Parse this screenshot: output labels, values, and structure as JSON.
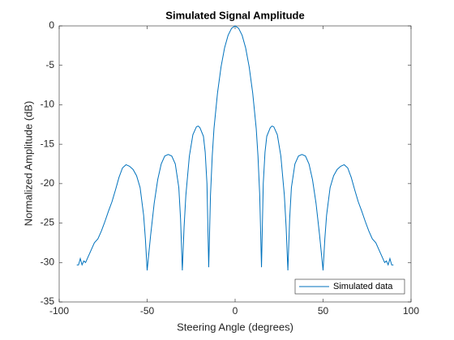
{
  "chart_data": {
    "type": "line",
    "title": "Simulated Signal Amplitude",
    "xlabel": "Steering Angle (degrees)",
    "ylabel": "Normalized Amplitude (dB)",
    "x": [
      -90,
      -89,
      -88,
      -87,
      -86,
      -85,
      -84,
      -82,
      -80,
      -78,
      -76,
      -74,
      -72,
      -70,
      -68,
      -66,
      -64,
      -62,
      -60,
      -58,
      -56,
      -54,
      -52,
      -51,
      -50,
      -48,
      -46,
      -44,
      -42,
      -40,
      -38,
      -36,
      -34,
      -32,
      -31,
      -30,
      -29,
      -28,
      -26,
      -24,
      -22,
      -21,
      -20,
      -18,
      -17,
      -16,
      -15,
      -14,
      -13,
      -12,
      -10,
      -8,
      -6,
      -4,
      -2,
      0,
      2,
      4,
      6,
      8,
      10,
      12,
      13,
      14,
      15,
      16,
      17,
      18,
      20,
      21,
      22,
      24,
      26,
      28,
      29,
      30,
      31,
      32,
      34,
      36,
      38,
      40,
      42,
      44,
      46,
      48,
      50,
      51,
      52,
      54,
      56,
      58,
      60,
      62,
      64,
      66,
      68,
      70,
      72,
      74,
      76,
      78,
      80,
      82,
      84,
      85,
      86,
      87,
      88,
      89,
      90
    ],
    "series": [
      {
        "name": "Simulated data",
        "color": "#0072bd",
        "values": [
          -30.3,
          -30.3,
          -29.5,
          -30.3,
          -29.8,
          -30,
          -29.5,
          -28.5,
          -27.5,
          -27,
          -26,
          -24.8,
          -23.5,
          -22.3,
          -20.8,
          -19.2,
          -18,
          -17.6,
          -17.8,
          -18.2,
          -19,
          -20.5,
          -24,
          -27,
          -31,
          -26.5,
          -22.5,
          -19.5,
          -17.5,
          -16.5,
          -16.3,
          -16.5,
          -17.5,
          -20.5,
          -24.5,
          -31,
          -25.5,
          -21.5,
          -16.5,
          -13.8,
          -12.8,
          -12.7,
          -12.9,
          -14,
          -16,
          -20,
          -30.6,
          -21.5,
          -16.5,
          -13,
          -8.5,
          -5.2,
          -2.8,
          -1.2,
          -0.3,
          0,
          -0.3,
          -1.2,
          -2.8,
          -5.2,
          -8.5,
          -13,
          -16.5,
          -21.5,
          -30.6,
          -20,
          -16,
          -14,
          -12.9,
          -12.7,
          -12.8,
          -13.8,
          -16.5,
          -21.5,
          -25.5,
          -31,
          -24.5,
          -20.5,
          -17.5,
          -16.5,
          -16.3,
          -16.5,
          -17.5,
          -19.5,
          -22.5,
          -26.5,
          -31,
          -27,
          -24,
          -20.5,
          -19,
          -18.2,
          -17.8,
          -17.6,
          -18,
          -19.2,
          -20.8,
          -22.3,
          -23.5,
          -24.8,
          -26,
          -27,
          -27.5,
          -28.5,
          -29.5,
          -30,
          -29.8,
          -30.3,
          -29.5,
          -30.3,
          -30.3
        ]
      }
    ],
    "xlim": [
      -100,
      100
    ],
    "xticks": [
      -100,
      -50,
      0,
      50,
      100
    ],
    "ylim": [
      -35,
      0
    ],
    "yticks": [
      -35,
      -30,
      -25,
      -20,
      -15,
      -10,
      -5,
      0
    ],
    "grid": false,
    "legend": "southeast"
  }
}
